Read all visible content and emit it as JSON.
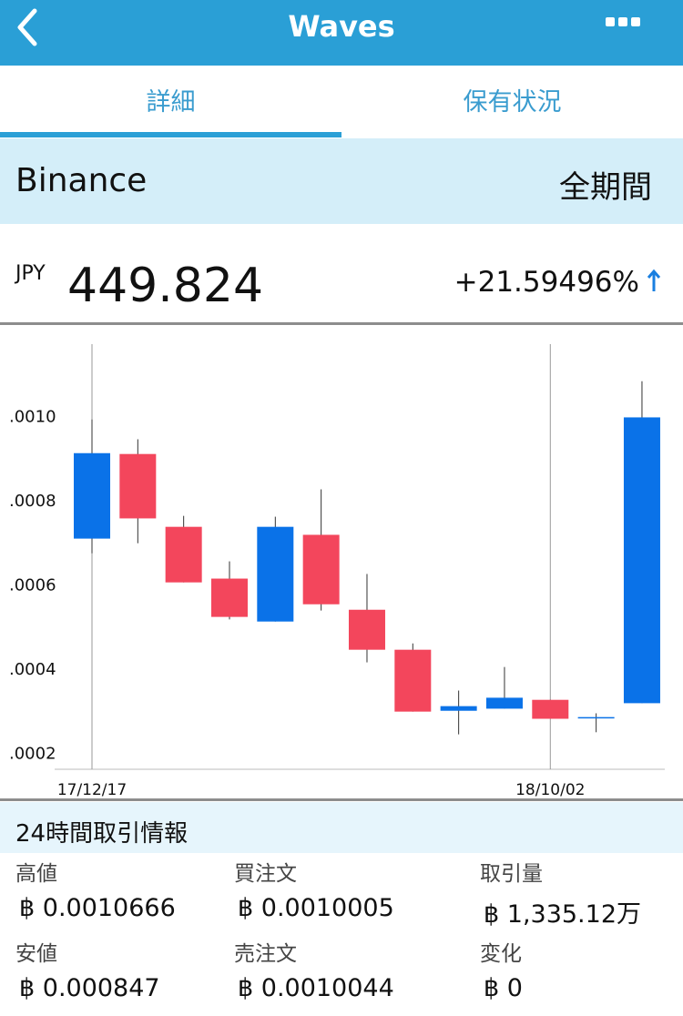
{
  "header": {
    "title": "Waves"
  },
  "tabs": [
    "詳細",
    "保有状況"
  ],
  "exchange": "Binance",
  "period": "全期間",
  "price": {
    "currency": "JPY",
    "value": "449.824",
    "change": "+21.59496%"
  },
  "chart_data": {
    "type": "candlestick",
    "categories": [
      "17/12/17",
      null,
      null,
      null,
      null,
      null,
      null,
      null,
      null,
      null,
      "18/10/02",
      null,
      null
    ],
    "open": [
      0.000708,
      0.000909,
      0.000736,
      0.000613,
      0.000511,
      0.000717,
      0.000539,
      0.000444,
      0.000299,
      0.000304,
      0.000325,
      0.000284,
      0.000317
    ],
    "close": [
      0.000911,
      0.000756,
      0.000604,
      0.000522,
      0.000736,
      0.000552,
      0.000444,
      0.000297,
      0.00031,
      0.00033,
      0.00028,
      0.000284,
      0.000996
    ],
    "high": [
      0.000991,
      0.000944,
      0.000762,
      0.000654,
      0.00076,
      0.000825,
      0.000624,
      0.000459,
      0.000347,
      0.000403,
      0.000325,
      0.000293,
      0.001082
    ],
    "low": [
      0.000673,
      0.000697,
      0.000604,
      0.000516,
      0.000511,
      0.000537,
      0.000414,
      0.000297,
      0.000243,
      0.000304,
      0.00028,
      0.000248,
      0.000317
    ],
    "up_color": "#0a72e8",
    "down_color": "#f3465c",
    "ylim": [
      0.00016,
      0.00117
    ],
    "yticks": [
      {
        "value": 0.0002,
        "label": ".0002"
      },
      {
        "value": 0.0004,
        "label": ".0004"
      },
      {
        "value": 0.0006,
        "label": ".0006"
      },
      {
        "value": 0.0008,
        "label": ".0008"
      },
      {
        "value": 0.001,
        "label": ".0010"
      }
    ]
  },
  "info": {
    "title": "24時間取引情報",
    "items": [
      {
        "label": "高値",
        "value": "฿ 0.0010666"
      },
      {
        "label": "買注文",
        "value": "฿ 0.0010005"
      },
      {
        "label": "取引量",
        "value": "฿ 1,335.12万"
      },
      {
        "label": "安値",
        "value": "฿ 0.000847"
      },
      {
        "label": "売注文",
        "value": "฿ 0.0010044"
      },
      {
        "label": "変化",
        "value": "฿ 0"
      }
    ]
  }
}
